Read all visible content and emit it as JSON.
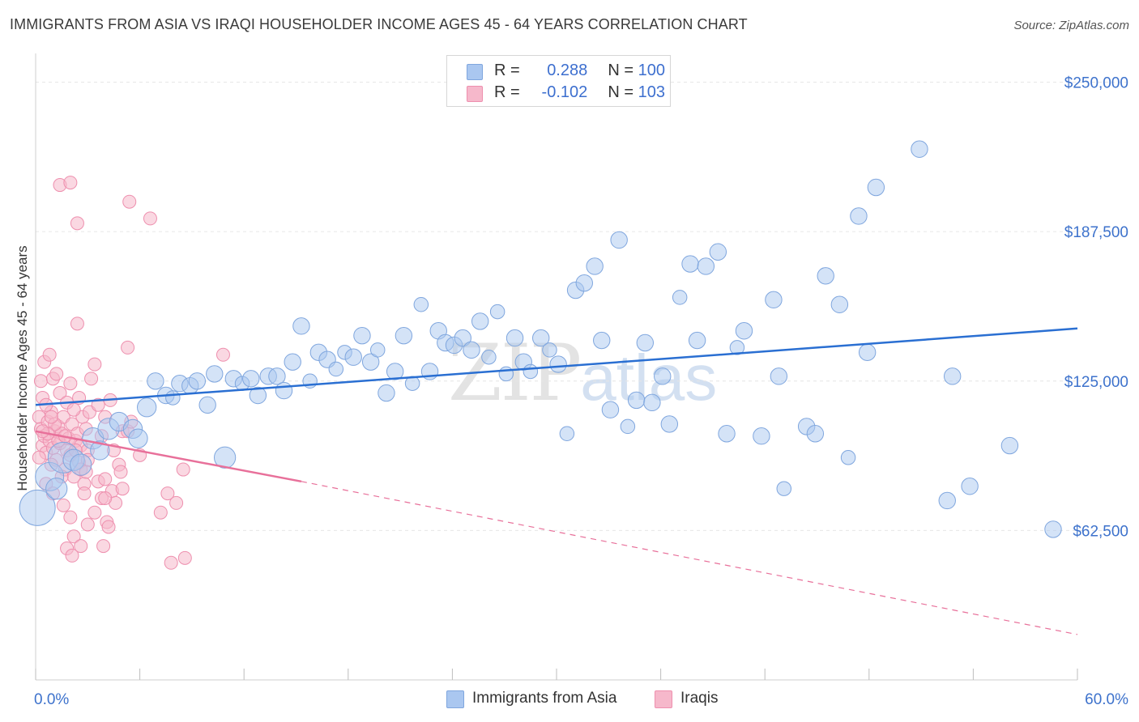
{
  "header": {
    "title": "IMMIGRANTS FROM ASIA VS IRAQI HOUSEHOLDER INCOME AGES 45 - 64 YEARS CORRELATION CHART",
    "source": "Source: ZipAtlas.com"
  },
  "watermark": {
    "zip": "ZIP",
    "atlas": "atlas"
  },
  "legend": {
    "r_label": "R =",
    "n_label": "N =",
    "rows": [
      {
        "r": "0.288",
        "n": "100",
        "color": "#a9c6f0"
      },
      {
        "r": "-0.102",
        "n": "103",
        "color": "#f7b6ca"
      }
    ]
  },
  "colors": {
    "blue_fill": "#aac7f0",
    "blue_stroke": "#7fa6de",
    "blue_line": "#2a6fd2",
    "pink_fill": "#f6b8cb",
    "pink_stroke": "#ee8fae",
    "pink_line": "#e8709a",
    "tick_label": "#3d72cc"
  },
  "chart_data": {
    "type": "scatter",
    "title": "IMMIGRANTS FROM ASIA VS IRAQI HOUSEHOLDER INCOME AGES 45 - 64 YEARS CORRELATION CHART",
    "xlabel": "",
    "ylabel": "Householder Income Ages 45 - 64 years",
    "xlim": [
      0,
      60
    ],
    "ylim": [
      0,
      260000
    ],
    "x_tick_labels": [
      {
        "value": 0,
        "label": "0.0%"
      },
      {
        "value": 60,
        "label": "60.0%"
      }
    ],
    "y_ticks": [
      {
        "value": 62500,
        "label": "$62,500"
      },
      {
        "value": 125000,
        "label": "$125,000"
      },
      {
        "value": 187500,
        "label": "$187,500"
      },
      {
        "value": 250000,
        "label": "$250,000"
      }
    ],
    "grid": true,
    "legend_position": "top-center",
    "series": [
      {
        "name": "Immigrants from Asia",
        "color": "#aac7f0",
        "trend": {
          "x": [
            0,
            60
          ],
          "y": [
            115000,
            147000
          ],
          "style": "solid"
        },
        "points": [
          [
            0.1,
            72000,
            1.6
          ],
          [
            0.8,
            85000,
            1.2
          ],
          [
            1.6,
            93000,
            1.3
          ],
          [
            2.2,
            92000,
            0.9
          ],
          [
            3.3,
            101000,
            0.9
          ],
          [
            4.2,
            105000,
            0.9
          ],
          [
            4.8,
            108000,
            0.8
          ],
          [
            5.6,
            105000,
            0.8
          ],
          [
            5.9,
            101000,
            0.8
          ],
          [
            6.4,
            114000,
            0.8
          ],
          [
            6.9,
            125000,
            0.7
          ],
          [
            7.5,
            119000,
            0.7
          ],
          [
            7.9,
            118000,
            0.6
          ],
          [
            8.3,
            124000,
            0.7
          ],
          [
            8.9,
            123000,
            0.7
          ],
          [
            9.3,
            125000,
            0.7
          ],
          [
            9.9,
            115000,
            0.7
          ],
          [
            10.3,
            128000,
            0.7
          ],
          [
            10.9,
            93000,
            0.9
          ],
          [
            11.4,
            126000,
            0.7
          ],
          [
            11.9,
            124000,
            0.6
          ],
          [
            12.4,
            126000,
            0.7
          ],
          [
            12.8,
            119000,
            0.7
          ],
          [
            13.4,
            127000,
            0.7
          ],
          [
            13.9,
            127000,
            0.7
          ],
          [
            14.3,
            121000,
            0.7
          ],
          [
            14.8,
            133000,
            0.7
          ],
          [
            15.3,
            148000,
            0.7
          ],
          [
            15.8,
            125000,
            0.6
          ],
          [
            16.3,
            137000,
            0.7
          ],
          [
            16.8,
            134000,
            0.7
          ],
          [
            17.3,
            130000,
            0.6
          ],
          [
            17.8,
            137000,
            0.6
          ],
          [
            18.3,
            135000,
            0.7
          ],
          [
            18.8,
            144000,
            0.7
          ],
          [
            19.3,
            133000,
            0.7
          ],
          [
            19.7,
            138000,
            0.6
          ],
          [
            20.2,
            120000,
            0.7
          ],
          [
            20.7,
            129000,
            0.7
          ],
          [
            21.2,
            144000,
            0.7
          ],
          [
            21.7,
            124000,
            0.6
          ],
          [
            22.2,
            157000,
            0.6
          ],
          [
            22.7,
            129000,
            0.7
          ],
          [
            23.2,
            146000,
            0.7
          ],
          [
            23.6,
            141000,
            0.7
          ],
          [
            24.1,
            140000,
            0.7
          ],
          [
            24.6,
            143000,
            0.7
          ],
          [
            25.1,
            138000,
            0.7
          ],
          [
            25.6,
            150000,
            0.7
          ],
          [
            26.1,
            135000,
            0.6
          ],
          [
            26.6,
            154000,
            0.6
          ],
          [
            27.1,
            128000,
            0.6
          ],
          [
            27.6,
            143000,
            0.7
          ],
          [
            28.1,
            133000,
            0.7
          ],
          [
            28.5,
            129000,
            0.6
          ],
          [
            29.1,
            143000,
            0.7
          ],
          [
            29.6,
            138000,
            0.6
          ],
          [
            30.1,
            132000,
            0.7
          ],
          [
            30.6,
            103000,
            0.6
          ],
          [
            31.1,
            163000,
            0.7
          ],
          [
            31.6,
            166000,
            0.7
          ],
          [
            32.2,
            173000,
            0.7
          ],
          [
            32.6,
            142000,
            0.7
          ],
          [
            33.1,
            113000,
            0.7
          ],
          [
            33.6,
            184000,
            0.7
          ],
          [
            34.1,
            106000,
            0.6
          ],
          [
            34.6,
            117000,
            0.7
          ],
          [
            35.1,
            141000,
            0.7
          ],
          [
            35.5,
            116000,
            0.7
          ],
          [
            36.1,
            127000,
            0.7
          ],
          [
            36.5,
            107000,
            0.7
          ],
          [
            37.1,
            160000,
            0.6
          ],
          [
            37.7,
            174000,
            0.7
          ],
          [
            38.1,
            142000,
            0.7
          ],
          [
            38.6,
            173000,
            0.7
          ],
          [
            39.3,
            179000,
            0.7
          ],
          [
            39.8,
            103000,
            0.7
          ],
          [
            40.4,
            139000,
            0.6
          ],
          [
            40.8,
            146000,
            0.7
          ],
          [
            41.8,
            102000,
            0.7
          ],
          [
            42.5,
            159000,
            0.7
          ],
          [
            42.8,
            127000,
            0.7
          ],
          [
            43.1,
            80000,
            0.6
          ],
          [
            44.4,
            106000,
            0.7
          ],
          [
            44.9,
            103000,
            0.7
          ],
          [
            45.5,
            169000,
            0.7
          ],
          [
            46.3,
            157000,
            0.7
          ],
          [
            46.8,
            93000,
            0.6
          ],
          [
            47.4,
            194000,
            0.7
          ],
          [
            47.9,
            137000,
            0.7
          ],
          [
            48.4,
            206000,
            0.7
          ],
          [
            50.9,
            222000,
            0.7
          ],
          [
            52.5,
            75000,
            0.7
          ],
          [
            52.8,
            127000,
            0.7
          ],
          [
            53.8,
            81000,
            0.7
          ],
          [
            56.1,
            98000,
            0.7
          ],
          [
            58.6,
            63000,
            0.7
          ],
          [
            2.6,
            90000,
            0.9
          ],
          [
            1.2,
            80000,
            0.9
          ],
          [
            3.7,
            96000,
            0.8
          ]
        ]
      },
      {
        "name": "Iraqis",
        "color": "#f6b8cb",
        "trend": {
          "x": [
            0,
            15.3,
            60
          ],
          "y": [
            104000,
            83000,
            19000
          ],
          "style": "solid-then-dashed"
        },
        "points": [
          [
            0.2,
            110000
          ],
          [
            0.3,
            105000
          ],
          [
            0.4,
            98000
          ],
          [
            0.5,
            102000
          ],
          [
            0.6,
            95000
          ],
          [
            0.7,
            108000
          ],
          [
            0.8,
            100000
          ],
          [
            0.9,
            112000
          ],
          [
            1.0,
            97000
          ],
          [
            1.1,
            104000
          ],
          [
            1.2,
            92000
          ],
          [
            1.3,
            106000
          ],
          [
            1.4,
            99000
          ],
          [
            1.5,
            103000
          ],
          [
            1.6,
            110000
          ],
          [
            1.7,
            88000
          ],
          [
            1.8,
            96000
          ],
          [
            1.9,
            101000
          ],
          [
            2.0,
            94000
          ],
          [
            2.1,
            107000
          ],
          [
            2.2,
            85000
          ],
          [
            2.3,
            100000
          ],
          [
            2.4,
            103000
          ],
          [
            2.5,
            91000
          ],
          [
            2.6,
            98000
          ],
          [
            2.7,
            110000
          ],
          [
            2.8,
            82000
          ],
          [
            2.9,
            105000
          ],
          [
            3.0,
            96000
          ],
          [
            3.1,
            112000
          ],
          [
            0.3,
            125000
          ],
          [
            0.5,
            133000
          ],
          [
            0.8,
            136000
          ],
          [
            1.0,
            126000
          ],
          [
            1.2,
            128000
          ],
          [
            0.4,
            118000
          ],
          [
            0.6,
            115000
          ],
          [
            1.4,
            120000
          ],
          [
            2.0,
            124000
          ],
          [
            1.8,
            116000
          ],
          [
            2.2,
            113000
          ],
          [
            2.5,
            118000
          ],
          [
            3.2,
            126000
          ],
          [
            3.4,
            132000
          ],
          [
            3.6,
            115000
          ],
          [
            4.0,
            110000
          ],
          [
            4.3,
            117000
          ],
          [
            3.8,
            102000
          ],
          [
            4.5,
            96000
          ],
          [
            5.0,
            104000
          ],
          [
            1.4,
            207000
          ],
          [
            2.0,
            208000
          ],
          [
            2.4,
            191000
          ],
          [
            2.4,
            149000
          ],
          [
            5.3,
            139000
          ],
          [
            5.4,
            200000
          ],
          [
            6.6,
            193000
          ],
          [
            10.8,
            136000
          ],
          [
            0.6,
            82000
          ],
          [
            1.0,
            78000
          ],
          [
            1.6,
            73000
          ],
          [
            2.0,
            68000
          ],
          [
            2.2,
            60000
          ],
          [
            1.8,
            55000
          ],
          [
            2.1,
            52000
          ],
          [
            2.6,
            56000
          ],
          [
            2.8,
            78000
          ],
          [
            3.0,
            65000
          ],
          [
            3.4,
            70000
          ],
          [
            3.6,
            83000
          ],
          [
            3.8,
            76000
          ],
          [
            4.0,
            84000
          ],
          [
            4.1,
            66000
          ],
          [
            4.2,
            64000
          ],
          [
            4.4,
            79000
          ],
          [
            4.6,
            74000
          ],
          [
            4.8,
            90000
          ],
          [
            4.9,
            87000
          ],
          [
            5.0,
            80000
          ],
          [
            5.3,
            104000
          ],
          [
            5.5,
            108000
          ],
          [
            6.0,
            94000
          ],
          [
            4.0,
            76000
          ],
          [
            3.0,
            92000
          ],
          [
            2.6,
            88000
          ],
          [
            7.6,
            78000
          ],
          [
            8.1,
            74000
          ],
          [
            7.2,
            70000
          ],
          [
            8.5,
            88000
          ],
          [
            8.6,
            51000
          ],
          [
            7.8,
            49000
          ],
          [
            3.9,
            56000
          ],
          [
            2.9,
            87000
          ],
          [
            1.5,
            85000
          ],
          [
            0.9,
            90000
          ],
          [
            0.2,
            93000
          ],
          [
            1.1,
            107000
          ],
          [
            1.3,
            100000
          ],
          [
            0.7,
            103000
          ],
          [
            0.9,
            110000
          ],
          [
            1.7,
            102000
          ],
          [
            2.3,
            96000
          ],
          [
            0.4,
            104000
          ]
        ]
      }
    ]
  }
}
